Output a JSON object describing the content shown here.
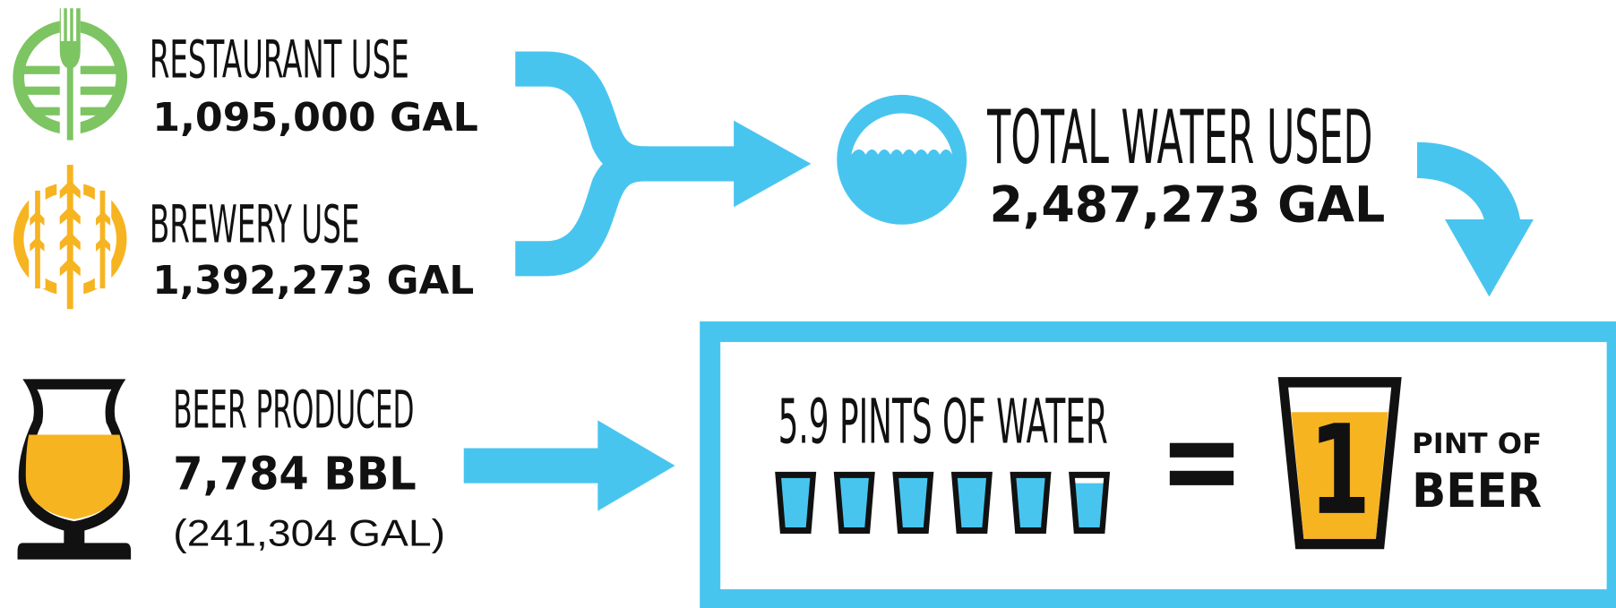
{
  "sources": [
    {
      "label": "RESTAURANT USE",
      "amount": "1,095,000 GAL"
    },
    {
      "label": "BREWERY USE",
      "amount": "1,392,273 GAL"
    }
  ],
  "total": {
    "label": "TOTAL WATER USED",
    "amount": "2,487,273 GAL"
  },
  "beer": {
    "label": "BEER PRODUCED",
    "amount": "7,784 BBL",
    "gallons": "(241,304 GAL)"
  },
  "ratio": {
    "water": "5.9 PINTS OF WATER",
    "glass_number": "1",
    "beer_line_1": "PINT OF",
    "beer_line_2": "BEER"
  }
}
